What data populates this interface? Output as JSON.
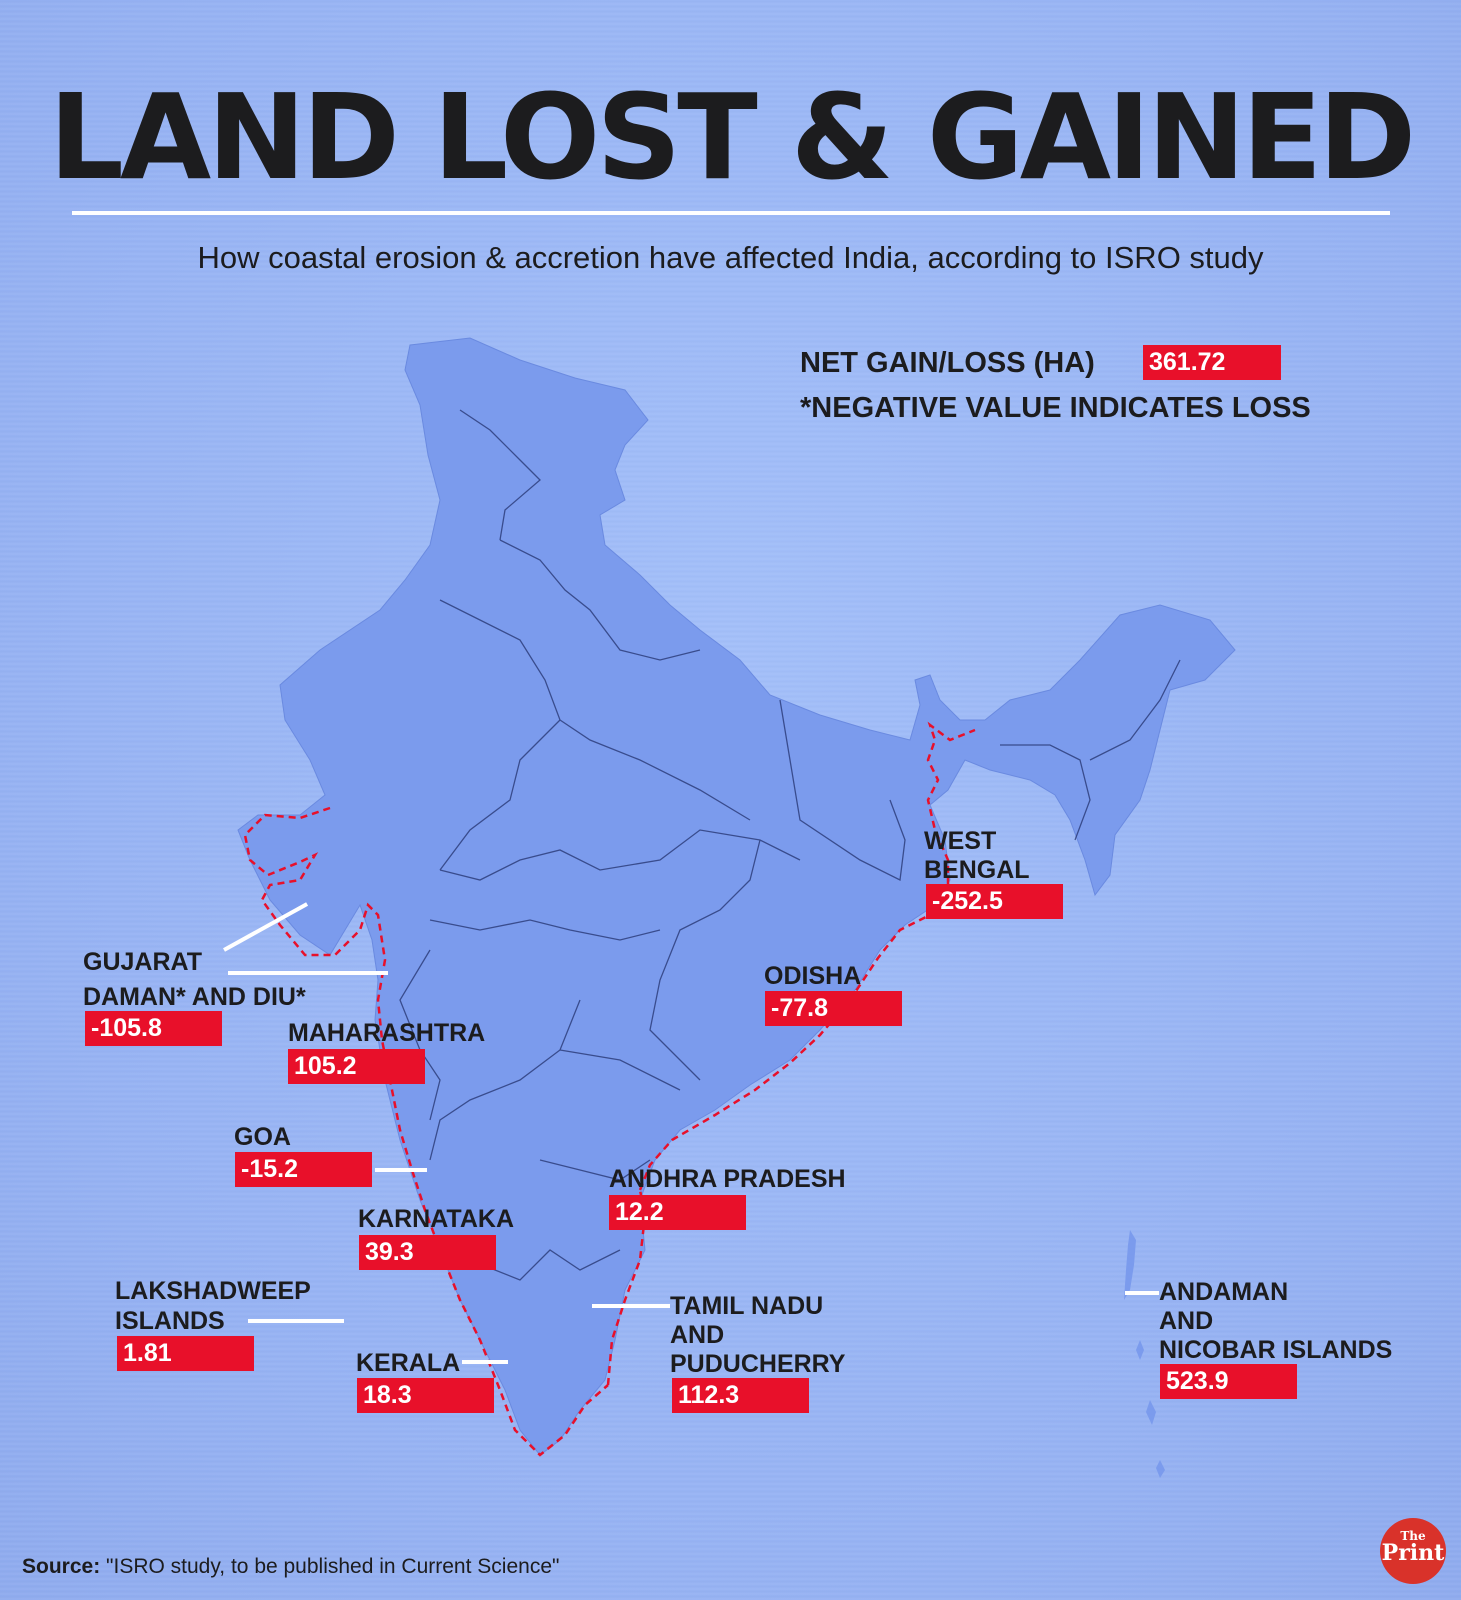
{
  "title": "LAND LOST & GAINED",
  "subtitle": "How coastal erosion & accretion have affected India, according to ISRO study",
  "legend": {
    "net_label": "NET GAIN/LOSS (HA)",
    "net_value": "361.72",
    "note": "*NEGATIVE VALUE INDICATES LOSS"
  },
  "regions": {
    "gujarat": {
      "name": "GUJARAT",
      "name2": "DAMAN* AND DIU*",
      "value": "-105.8"
    },
    "maharashtra": {
      "name": "MAHARASHTRA",
      "value": "105.2"
    },
    "goa": {
      "name": "GOA",
      "value": "-15.2"
    },
    "karnataka": {
      "name": "KARNATAKA",
      "value": "39.3"
    },
    "lakshadweep": {
      "name": "LAKSHADWEEP",
      "name2": "ISLANDS",
      "value": "1.81"
    },
    "kerala": {
      "name": "KERALA",
      "value": "18.3"
    },
    "tamil_nadu": {
      "name": "TAMIL NADU",
      "name2": "AND",
      "name3": "PUDUCHERRY",
      "value": "112.3"
    },
    "andhra": {
      "name": "ANDHRA PRADESH",
      "value": "12.2"
    },
    "odisha": {
      "name": "ODISHA",
      "value": "-77.8"
    },
    "west_bengal": {
      "name": "WEST",
      "name2": "BENGAL",
      "value": "-252.5"
    },
    "andaman": {
      "name": "ANDAMAN",
      "name2": "AND",
      "name3": "NICOBAR ISLANDS",
      "value": "523.9"
    }
  },
  "source": {
    "label": "Source:",
    "text": "\"ISRO study, to be published in Current Science\""
  },
  "logo": {
    "line1": "The",
    "line2": "Print"
  },
  "colors": {
    "background": "#9ab6f6",
    "land": "#7b9bed",
    "coastline": "#e8102a",
    "value_box": "#e8102a"
  }
}
